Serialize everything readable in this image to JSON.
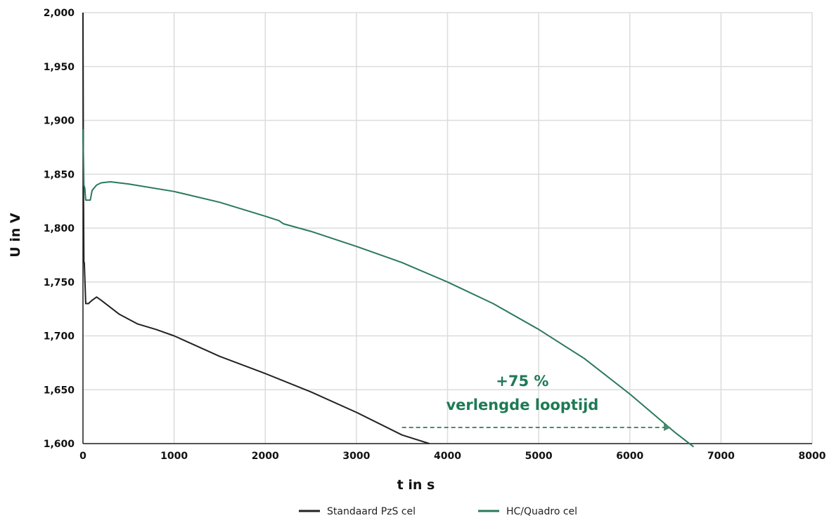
{
  "chart_data": {
    "type": "line",
    "xlabel": "t in s",
    "ylabel": "U in V",
    "xlim": [
      0,
      8000
    ],
    "ylim": [
      1.6,
      2.0
    ],
    "x_ticks": [
      0,
      1000,
      2000,
      3000,
      4000,
      5000,
      6000,
      7000,
      8000
    ],
    "x_tick_labels": [
      "0",
      "1000",
      "2000",
      "3000",
      "4000",
      "5000",
      "6000",
      "7000",
      "8000"
    ],
    "y_ticks": [
      1.6,
      1.65,
      1.7,
      1.75,
      1.8,
      1.85,
      1.9,
      1.95,
      2.0
    ],
    "y_tick_labels": [
      "1,600",
      "1,650",
      "1,700",
      "1,750",
      "1,800",
      "1,850",
      "1,900",
      "1,950",
      "2,000"
    ],
    "grid": true,
    "legend_position": "bottom-center",
    "series": [
      {
        "name": "Standaard PzS cel",
        "color": "#222222",
        "x": [
          0,
          5,
          10,
          15,
          30,
          60,
          100,
          150,
          200,
          400,
          600,
          800,
          1000,
          1500,
          2000,
          2500,
          3000,
          3500,
          3800
        ],
        "y": [
          2.0,
          1.85,
          1.768,
          1.768,
          1.73,
          1.73,
          1.733,
          1.736,
          1.733,
          1.72,
          1.711,
          1.706,
          1.7,
          1.681,
          1.665,
          1.648,
          1.629,
          1.608,
          1.6
        ]
      },
      {
        "name": "HC/Quadro cel",
        "color": "#2a7a5a",
        "x": [
          0,
          10,
          20,
          30,
          60,
          80,
          100,
          150,
          200,
          300,
          500,
          1000,
          1500,
          2000,
          2150,
          2200,
          2500,
          3000,
          3500,
          4000,
          4500,
          5000,
          5500,
          6000,
          6500,
          6700
        ],
        "y": [
          1.892,
          1.84,
          1.837,
          1.826,
          1.826,
          1.826,
          1.835,
          1.84,
          1.842,
          1.843,
          1.841,
          1.834,
          1.824,
          1.811,
          1.807,
          1.804,
          1.797,
          1.783,
          1.768,
          1.75,
          1.73,
          1.706,
          1.679,
          1.646,
          1.61,
          1.597
        ]
      }
    ],
    "annotation": {
      "line1": "+75 %",
      "line2": "verlengde looptijd",
      "color": "#1e7a55",
      "arrow_from": [
        3500,
        1.615
      ],
      "arrow_to": [
        6450,
        1.615
      ]
    }
  }
}
